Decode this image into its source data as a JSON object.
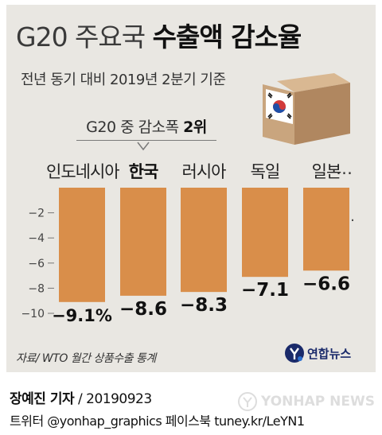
{
  "header": {
    "title_light": "G20 주요국",
    "title_bold": "수출액 감소율",
    "subtitle": "전년 동기 대비 2019년 2분기 기준"
  },
  "callout": {
    "text": "G20 중 감소폭",
    "bold": "2위"
  },
  "ellipsis": "…",
  "source": "자료/ WTO 월간 상품수출 통계",
  "logo": {
    "text": "연합뉴스",
    "colors": {
      "navy": "#1a2a6a",
      "blue": "#2a6fd0"
    }
  },
  "byline": {
    "name": "장예진 기자",
    "date": "/ 20190923"
  },
  "social": "트위터 @yonhap_graphics  페이스북 tuney.kr/LeYN1",
  "watermark": "YONHAP NEWS",
  "colors": {
    "bar": "#d98e4a",
    "background": "#e9e7e2",
    "box": "#c9a57e"
  },
  "chart_data": {
    "type": "bar",
    "categories": [
      "인도네시아",
      "한국",
      "러시아",
      "독일",
      "일본"
    ],
    "values": [
      -9.1,
      -8.6,
      -8.3,
      -7.1,
      -6.6
    ],
    "value_labels": [
      "−9.1%",
      "−8.6",
      "−8.3",
      "−7.1",
      "−6.6"
    ],
    "highlight_index": 1,
    "y_ticks": [
      -2,
      -4,
      -6,
      -8,
      -10
    ],
    "y_tick_labels": [
      "−2",
      "−4",
      "−6",
      "−8",
      "−10"
    ],
    "ylim": [
      -10,
      0
    ],
    "grid": false
  }
}
